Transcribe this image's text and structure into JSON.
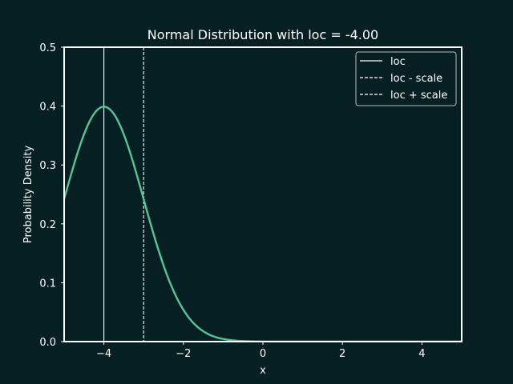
{
  "chart_data": {
    "type": "line",
    "title": "Normal Distribution with loc = -4.00",
    "xlabel": "x",
    "ylabel": "Probability Density",
    "xlim": [
      -5,
      5
    ],
    "ylim": [
      0,
      0.5
    ],
    "xticks": [
      -4,
      -2,
      0,
      2,
      4
    ],
    "xtick_labels": [
      "−4",
      "−2",
      "0",
      "2",
      "4"
    ],
    "yticks": [
      0.0,
      0.1,
      0.2,
      0.3,
      0.4,
      0.5
    ],
    "ytick_labels": [
      "0.0",
      "0.1",
      "0.2",
      "0.3",
      "0.4",
      "0.5"
    ],
    "grid": false,
    "legend_position": "top-right",
    "distribution": {
      "loc": -4.0,
      "scale": 1.0
    },
    "series": [
      {
        "name": "",
        "x": [
          -5.0,
          -4.75,
          -4.5,
          -4.25,
          -4.0,
          -3.75,
          -3.5,
          -3.25,
          -3.0,
          -2.75,
          -2.5,
          -2.25,
          -2.0,
          -1.75,
          -1.5,
          -1.25,
          -1.0,
          -0.75,
          -0.5,
          -0.25,
          0.0,
          0.5,
          1.0,
          2.0,
          3.0,
          4.0,
          5.0
        ],
        "y": [
          0.242,
          0.301,
          0.352,
          0.387,
          0.399,
          0.387,
          0.352,
          0.301,
          0.242,
          0.183,
          0.13,
          0.086,
          0.054,
          0.032,
          0.018,
          0.009,
          0.004,
          0.002,
          0.001,
          0.0002,
          0.0001,
          0.0,
          0.0,
          0.0,
          0.0,
          0.0,
          0.0
        ],
        "color": "#4fc994"
      }
    ],
    "vlines": [
      {
        "label": "loc",
        "x": -4.0,
        "style": "solid",
        "color": "#ffffff"
      },
      {
        "label": "loc - scale",
        "x": -5.0,
        "style": "dashed",
        "color": "#ffffff"
      },
      {
        "label": "loc + scale",
        "x": -3.0,
        "style": "dashed",
        "color": "#ffffff"
      }
    ]
  },
  "colors": {
    "background": "#061f22",
    "axes": "#ffffff",
    "text": "#ffffff",
    "curve": "#4fc994"
  }
}
